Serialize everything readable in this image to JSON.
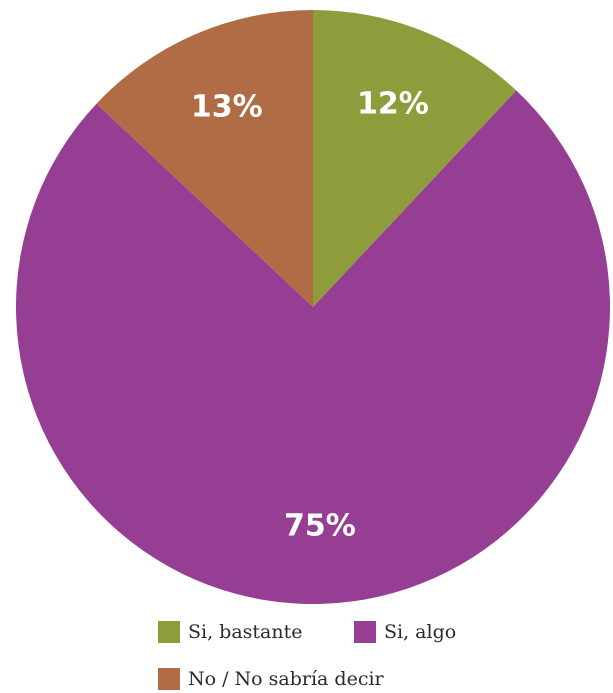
{
  "chart_data": {
    "type": "pie",
    "categories": [
      "Si, bastante",
      "Si, algo",
      "No / No sabría decir"
    ],
    "values": [
      12,
      75,
      13
    ],
    "labels": [
      "12%",
      "75%",
      "13%"
    ],
    "colors": [
      "#8f9c3c",
      "#953e93",
      "#b06c44"
    ],
    "start": "12 o'clock",
    "direction": "clockwise",
    "legend_position": "bottom"
  }
}
